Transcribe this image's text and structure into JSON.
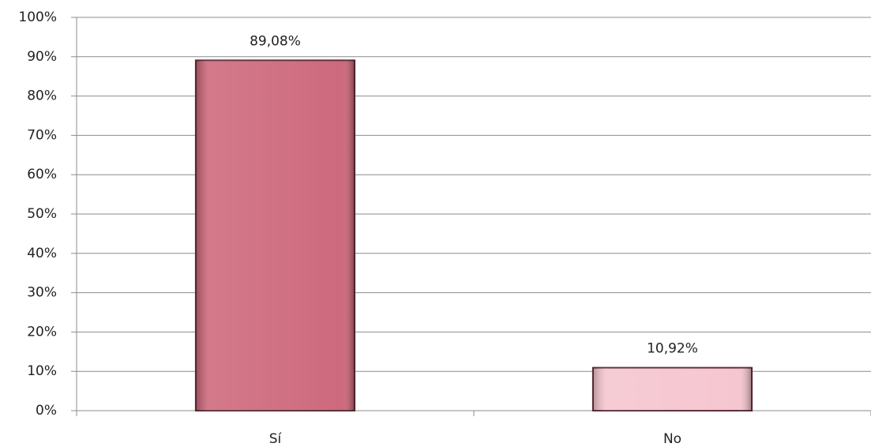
{
  "chart_data": {
    "type": "bar",
    "categories": [
      "Sí",
      "No"
    ],
    "values": [
      89.08,
      10.92
    ],
    "value_labels": [
      "89,08%",
      "10,92%"
    ],
    "colors": [
      "#cb6276",
      "#f5c3cd"
    ],
    "ylim": [
      0,
      100
    ],
    "yticks": [
      {
        "value": 0,
        "label": "0%"
      },
      {
        "value": 10,
        "label": "10%"
      },
      {
        "value": 20,
        "label": "20%"
      },
      {
        "value": 30,
        "label": "30%"
      },
      {
        "value": 40,
        "label": "40%"
      },
      {
        "value": 50,
        "label": "50%"
      },
      {
        "value": 60,
        "label": "60%"
      },
      {
        "value": 70,
        "label": "70%"
      },
      {
        "value": 80,
        "label": "80%"
      },
      {
        "value": 90,
        "label": "90%"
      },
      {
        "value": 100,
        "label": "100%"
      }
    ],
    "grid": true
  }
}
